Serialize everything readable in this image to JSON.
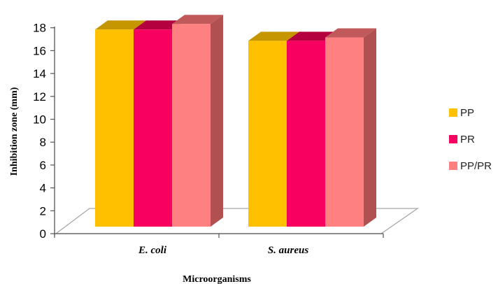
{
  "chart_data": {
    "type": "bar",
    "style": "3d-clustered-column",
    "categories": [
      "E. coli",
      "S. aureus"
    ],
    "series": [
      {
        "name": "PP",
        "values": [
          17.5,
          16.5
        ],
        "color": "#FFC000",
        "top_color": "#C69600"
      },
      {
        "name": "PR",
        "values": [
          17.5,
          16.5
        ],
        "color": "#F80060",
        "top_color": "#B4003E"
      },
      {
        "name": "PP/PR",
        "values": [
          18,
          16.8
        ],
        "color": "#FF8080",
        "top_color": "#C05A5A",
        "side_color": "#B05050"
      }
    ],
    "title": "",
    "xlabel": "Microorganisms",
    "ylabel": "Inhibition zone (mm)",
    "ylim": [
      0,
      18
    ],
    "yticks": [
      "0",
      "2",
      "4",
      "6",
      "8",
      "10",
      "12",
      "14",
      "16",
      "18"
    ],
    "grid": false,
    "legend_position": "right"
  }
}
